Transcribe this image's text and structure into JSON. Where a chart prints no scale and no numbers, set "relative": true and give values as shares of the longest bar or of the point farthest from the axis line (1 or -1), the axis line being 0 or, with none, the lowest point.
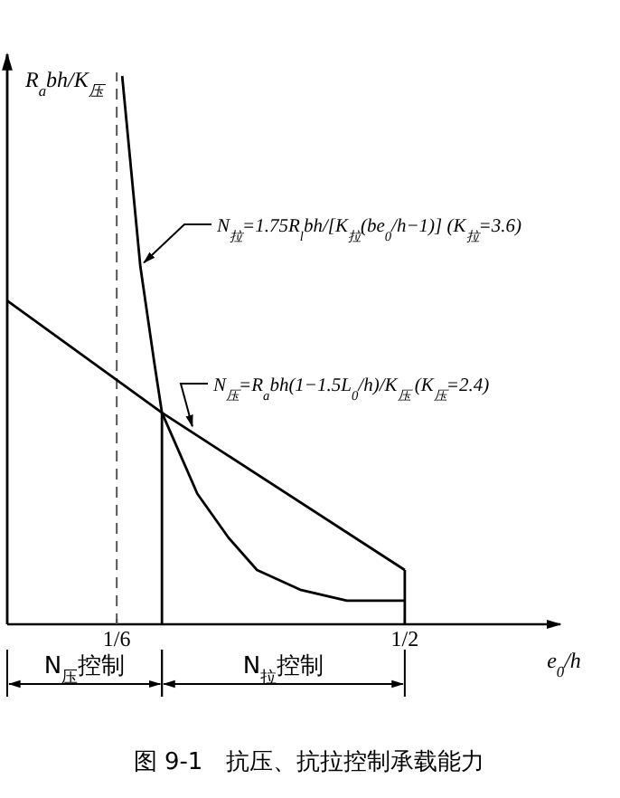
{
  "chart_data": {
    "type": "line",
    "relative": true,
    "title": "图 9-1　抗压、抗拉控制承载能力",
    "xlabel": "e$_{0}$/h",
    "ylabel": "R$_{a}$bh/K$_{压}$",
    "xlim": [
      0.04,
      0.68
    ],
    "xticks": [
      {
        "value": 0.1667,
        "label": "1/6"
      },
      {
        "value": 0.5,
        "label": "1/2"
      }
    ],
    "series": [
      {
        "color": "#000000",
        "x": [
          0.04,
          0.219,
          0.5
        ],
        "values": [
          0.59,
          0.386,
          0.099
        ]
      },
      {
        "color": "#000000",
        "x": [
          0.173,
          0.194,
          0.21,
          0.219,
          0.26,
          0.296,
          0.329,
          0.379,
          0.433,
          0.5
        ],
        "values": [
          1.0,
          0.653,
          0.479,
          0.386,
          0.238,
          0.158,
          0.099,
          0.063,
          0.043,
          0.043
        ]
      }
    ],
    "ref_lines": [
      {
        "axis": "x",
        "value": 0.1667,
        "line_style": "dashed",
        "color": "#555555"
      },
      {
        "axis": "x",
        "value": 0.219,
        "color": "#000000"
      },
      {
        "axis": "x",
        "value": 0.5,
        "color": "#000000"
      }
    ],
    "annotations": [
      "N$_{拉}$=1.75R$_{l}$bh/[K$_{拉}$(be$_{0}$/h−1)]  (K$_{拉}$=3.6)",
      "N$_{压}$=R$_{a}$bh(1−1.5L$_{0}$/h)/K$_{压}$  (K$_{压}$=2.4)",
      "N$_{压}$控制",
      "N$_{拉}$控制"
    ],
    "line_style": "solid"
  }
}
